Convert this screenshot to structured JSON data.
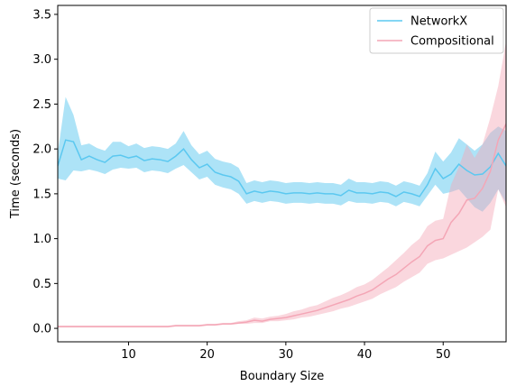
{
  "chart_data": {
    "type": "line",
    "title": "",
    "xlabel": "Boundary Size",
    "ylabel": "Time (seconds)",
    "xlim": [
      1,
      58
    ],
    "ylim": [
      -0.15,
      3.6
    ],
    "xticks": [
      10,
      20,
      30,
      40,
      50
    ],
    "yticks": [
      0.0,
      0.5,
      1.0,
      1.5,
      2.0,
      2.5,
      3.0,
      3.5
    ],
    "xtick_labels": [
      "10",
      "20",
      "30",
      "40",
      "50"
    ],
    "ytick_labels": [
      "0.0",
      "0.5",
      "1.0",
      "1.5",
      "2.0",
      "2.5",
      "3.0",
      "3.5"
    ],
    "grid": false,
    "legend_position": "top-right",
    "x": [
      1,
      2,
      3,
      4,
      5,
      6,
      7,
      8,
      9,
      10,
      11,
      12,
      13,
      14,
      15,
      16,
      17,
      18,
      19,
      20,
      21,
      22,
      23,
      24,
      25,
      26,
      27,
      28,
      29,
      30,
      31,
      32,
      33,
      34,
      35,
      36,
      37,
      38,
      39,
      40,
      41,
      42,
      43,
      44,
      45,
      46,
      47,
      48,
      49,
      50,
      51,
      52,
      53,
      54,
      55,
      56,
      57,
      58
    ],
    "series": [
      {
        "name": "NetworkX",
        "color": "#5bc8f0",
        "fill_color": "#5bc8f0",
        "values": [
          1.81,
          2.1,
          2.08,
          1.88,
          1.92,
          1.88,
          1.85,
          1.92,
          1.93,
          1.9,
          1.92,
          1.87,
          1.89,
          1.88,
          1.86,
          1.92,
          2.0,
          1.88,
          1.79,
          1.83,
          1.74,
          1.71,
          1.69,
          1.64,
          1.5,
          1.53,
          1.51,
          1.53,
          1.52,
          1.5,
          1.51,
          1.51,
          1.5,
          1.51,
          1.5,
          1.5,
          1.48,
          1.54,
          1.51,
          1.51,
          1.5,
          1.52,
          1.51,
          1.47,
          1.52,
          1.5,
          1.47,
          1.6,
          1.78,
          1.67,
          1.72,
          1.83,
          1.76,
          1.71,
          1.72,
          1.8,
          1.95,
          1.81
        ],
        "lower": [
          1.67,
          1.65,
          1.76,
          1.75,
          1.77,
          1.75,
          1.72,
          1.77,
          1.79,
          1.78,
          1.79,
          1.74,
          1.76,
          1.75,
          1.73,
          1.78,
          1.82,
          1.74,
          1.66,
          1.69,
          1.6,
          1.57,
          1.55,
          1.5,
          1.39,
          1.42,
          1.4,
          1.42,
          1.41,
          1.39,
          1.4,
          1.4,
          1.39,
          1.4,
          1.39,
          1.39,
          1.37,
          1.42,
          1.4,
          1.4,
          1.39,
          1.41,
          1.4,
          1.36,
          1.41,
          1.39,
          1.36,
          1.48,
          1.6,
          1.5,
          1.52,
          1.55,
          1.45,
          1.35,
          1.3,
          1.4,
          1.55,
          1.4
        ],
        "upper": [
          1.95,
          2.58,
          2.38,
          2.04,
          2.06,
          2.01,
          1.98,
          2.08,
          2.08,
          2.03,
          2.06,
          2.01,
          2.03,
          2.02,
          2.0,
          2.06,
          2.2,
          2.04,
          1.94,
          1.98,
          1.89,
          1.86,
          1.84,
          1.79,
          1.62,
          1.65,
          1.63,
          1.65,
          1.64,
          1.62,
          1.63,
          1.63,
          1.62,
          1.63,
          1.62,
          1.62,
          1.6,
          1.67,
          1.63,
          1.63,
          1.62,
          1.64,
          1.63,
          1.59,
          1.64,
          1.62,
          1.59,
          1.73,
          1.97,
          1.86,
          1.96,
          2.12,
          2.05,
          1.98,
          2.05,
          2.18,
          2.25,
          2.2
        ]
      },
      {
        "name": "Compositional",
        "color": "#f4a6b6",
        "fill_color": "#f4a6b6",
        "values": [
          0.02,
          0.02,
          0.02,
          0.02,
          0.02,
          0.02,
          0.02,
          0.02,
          0.02,
          0.02,
          0.02,
          0.02,
          0.02,
          0.02,
          0.02,
          0.03,
          0.03,
          0.03,
          0.03,
          0.04,
          0.04,
          0.05,
          0.05,
          0.06,
          0.07,
          0.09,
          0.08,
          0.1,
          0.11,
          0.12,
          0.14,
          0.16,
          0.18,
          0.2,
          0.23,
          0.26,
          0.29,
          0.32,
          0.36,
          0.39,
          0.43,
          0.49,
          0.55,
          0.6,
          0.67,
          0.74,
          0.8,
          0.92,
          0.98,
          1.0,
          1.18,
          1.28,
          1.43,
          1.45,
          1.56,
          1.75,
          2.1,
          2.28
        ],
        "lower": [
          0.01,
          0.01,
          0.01,
          0.01,
          0.01,
          0.01,
          0.01,
          0.01,
          0.01,
          0.01,
          0.01,
          0.01,
          0.01,
          0.01,
          0.01,
          0.02,
          0.02,
          0.02,
          0.02,
          0.03,
          0.03,
          0.04,
          0.04,
          0.05,
          0.05,
          0.06,
          0.06,
          0.08,
          0.08,
          0.09,
          0.1,
          0.12,
          0.13,
          0.15,
          0.17,
          0.19,
          0.22,
          0.24,
          0.27,
          0.3,
          0.33,
          0.38,
          0.42,
          0.46,
          0.52,
          0.57,
          0.62,
          0.72,
          0.76,
          0.78,
          0.82,
          0.86,
          0.9,
          0.96,
          1.02,
          1.1,
          1.55,
          1.35
        ],
        "upper": [
          0.03,
          0.03,
          0.03,
          0.03,
          0.03,
          0.03,
          0.03,
          0.03,
          0.03,
          0.03,
          0.03,
          0.03,
          0.03,
          0.03,
          0.03,
          0.04,
          0.04,
          0.04,
          0.04,
          0.05,
          0.05,
          0.06,
          0.06,
          0.08,
          0.09,
          0.12,
          0.11,
          0.13,
          0.14,
          0.16,
          0.19,
          0.21,
          0.24,
          0.26,
          0.3,
          0.34,
          0.37,
          0.41,
          0.46,
          0.49,
          0.54,
          0.61,
          0.68,
          0.76,
          0.84,
          0.93,
          1.0,
          1.14,
          1.2,
          1.22,
          1.6,
          1.8,
          2.05,
          1.9,
          2.05,
          2.35,
          2.7,
          3.2
        ]
      }
    ]
  }
}
